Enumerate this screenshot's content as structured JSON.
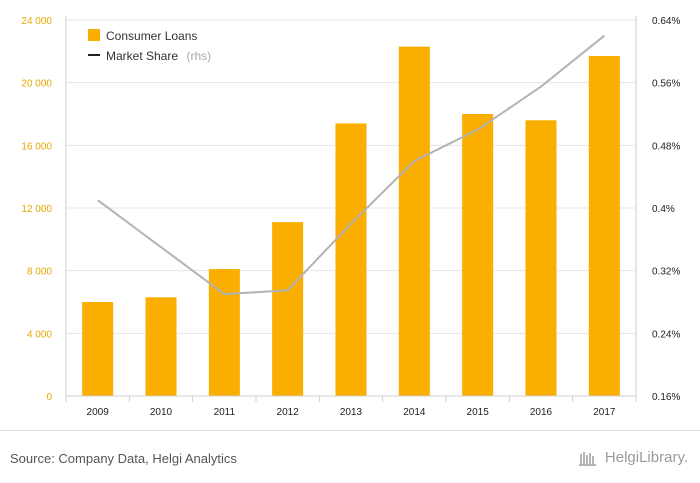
{
  "chart_data": {
    "type": "bar",
    "categories": [
      "2009",
      "2010",
      "2011",
      "2012",
      "2013",
      "2014",
      "2015",
      "2016",
      "2017"
    ],
    "series": [
      {
        "name": "Consumer Loans",
        "type": "bar",
        "axis": "left",
        "color": "#F9AE00",
        "values": [
          6000,
          6300,
          8100,
          11100,
          17400,
          22300,
          18000,
          17600,
          21700
        ]
      },
      {
        "name": "Market Share",
        "type": "line",
        "axis": "right",
        "color": "#b3b3b3",
        "values": [
          0.41,
          0.35,
          0.29,
          0.295,
          0.38,
          0.46,
          0.5,
          0.555,
          0.62
        ]
      }
    ],
    "y_left": {
      "min": 0,
      "max": 24000,
      "ticks": [
        "0",
        "4 000",
        "8 000",
        "12 000",
        "16 000",
        "20 000",
        "24 000"
      ]
    },
    "y_right": {
      "min": 0.16,
      "max": 0.64,
      "ticks": [
        "0.16%",
        "0.24%",
        "0.32%",
        "0.4%",
        "0.48%",
        "0.56%",
        "0.64%"
      ]
    },
    "legend": {
      "position": "top-left",
      "items": [
        {
          "label": "Consumer Loans",
          "suffix": ""
        },
        {
          "label": "Market Share",
          "suffix": "(rhs)"
        }
      ]
    },
    "grid": true
  },
  "footer": {
    "source": "Source: Company Data, Helgi Analytics",
    "brand": "HelgiLibrary."
  }
}
